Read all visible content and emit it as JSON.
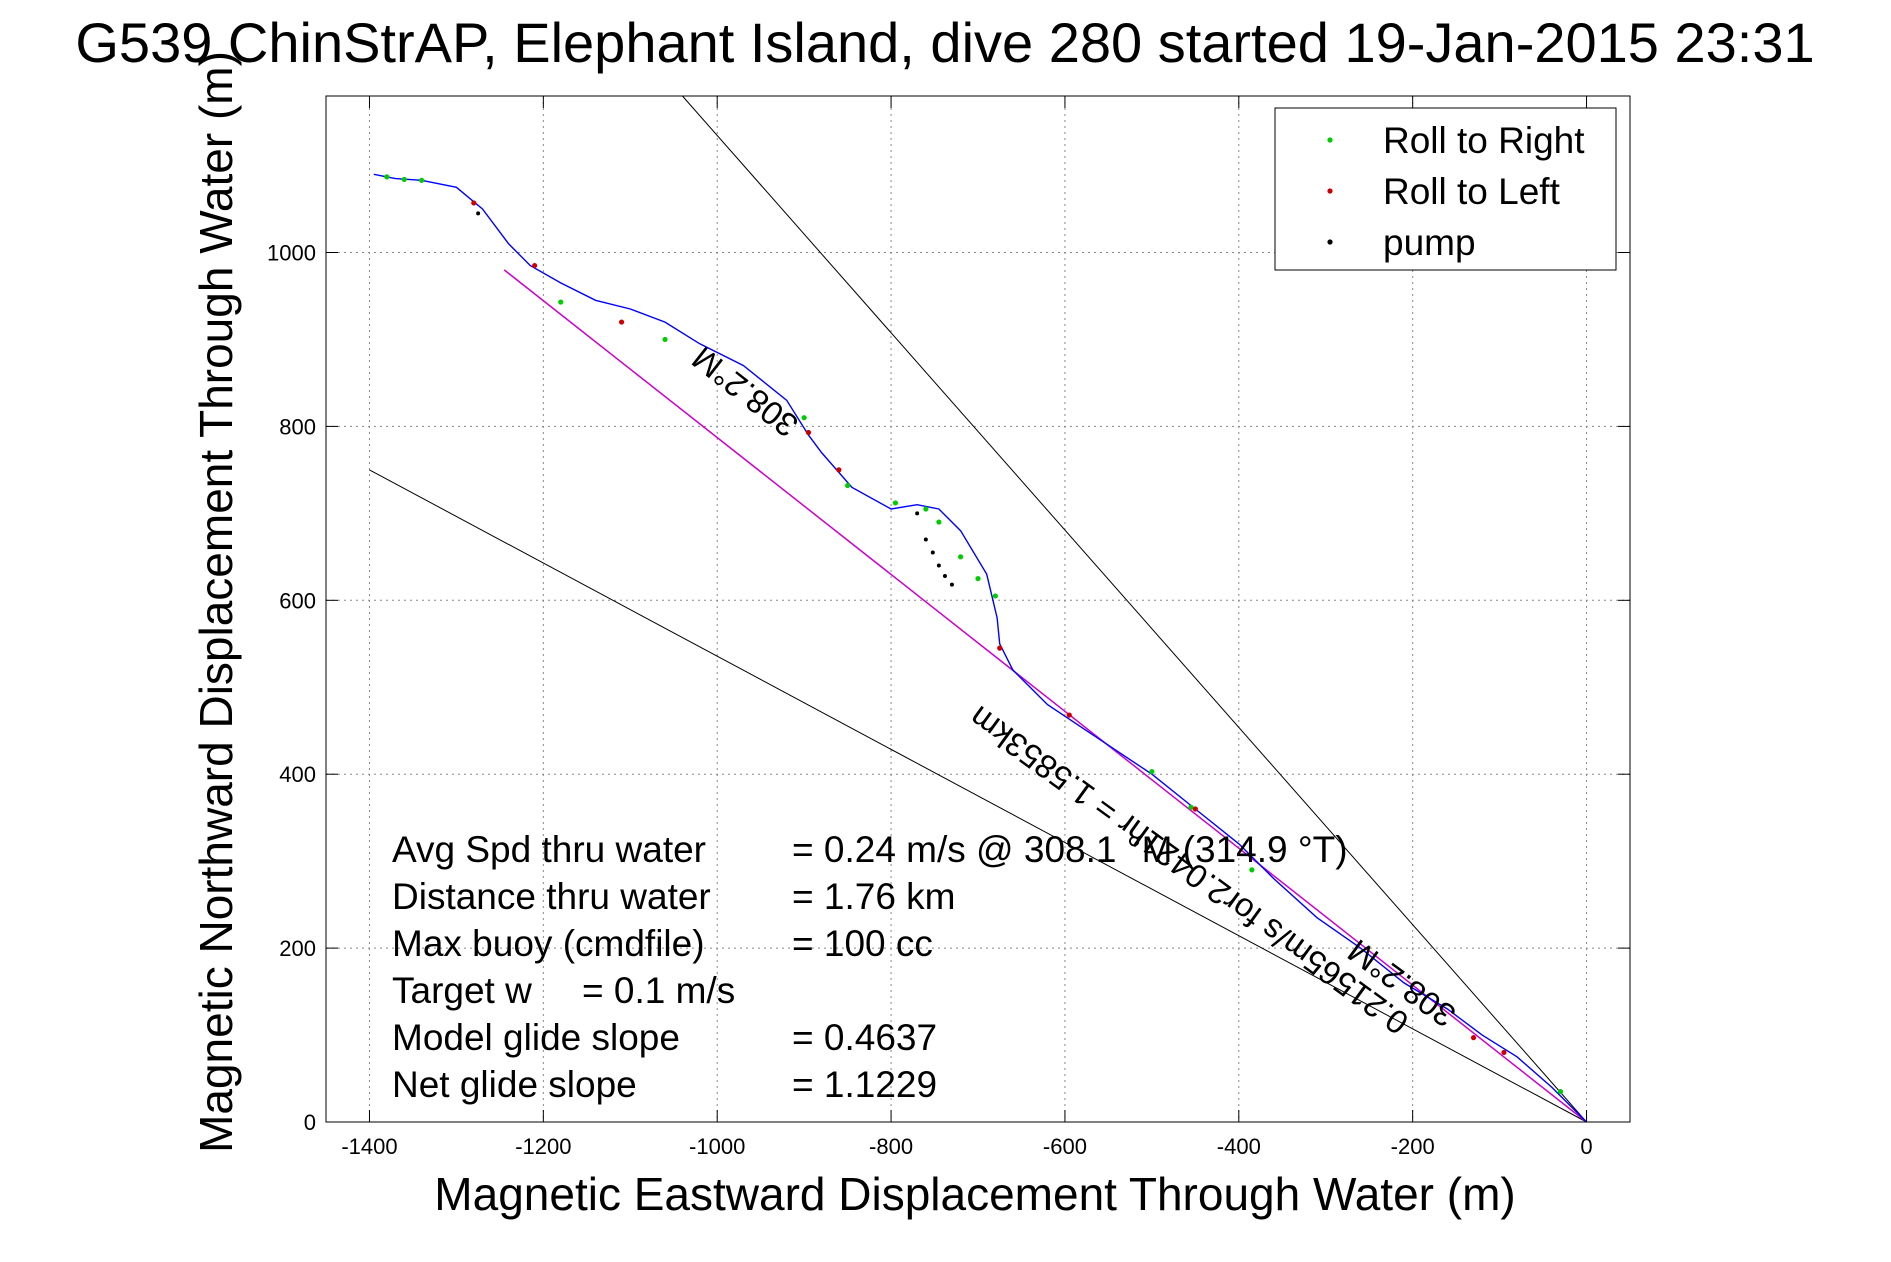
{
  "chart_data": {
    "type": "scatter",
    "title": "G539 ChinStrAP, Elephant Island, dive 280 started 19-Jan-2015 23:31",
    "xlabel": "Magnetic Eastward Displacement Through Water (m)",
    "ylabel": "Magnetic Northward Displacement Through Water (m)",
    "xlim": [
      -1450,
      50
    ],
    "ylim": [
      0,
      1180
    ],
    "xticks": [
      -1400,
      -1200,
      -1000,
      -800,
      -600,
      -400,
      -200,
      0
    ],
    "yticks": [
      0,
      200,
      400,
      600,
      800,
      1000
    ],
    "grid": true,
    "legend_position": "top-right",
    "legend": [
      {
        "label": "Roll to Right",
        "color": "#00cc00"
      },
      {
        "label": "Roll to Left",
        "color": "#cc0000"
      },
      {
        "label": "pump",
        "color": "#000000"
      }
    ],
    "track": {
      "color": "#0000ff",
      "x": [
        0,
        -40,
        -80,
        -120,
        -160,
        -210,
        -260,
        -310,
        -360,
        -400,
        -450,
        -500,
        -560,
        -620,
        -660,
        -675,
        -678,
        -690,
        -720,
        -745,
        -770,
        -800,
        -845,
        -880,
        -895,
        -920,
        -970,
        -1020,
        -1060,
        -1100,
        -1140,
        -1180,
        -1215,
        -1240,
        -1270,
        -1300,
        -1340,
        -1370,
        -1395
      ],
      "y": [
        0,
        40,
        75,
        100,
        130,
        160,
        200,
        235,
        280,
        320,
        360,
        400,
        440,
        480,
        520,
        550,
        580,
        630,
        680,
        705,
        710,
        705,
        730,
        770,
        790,
        830,
        870,
        895,
        920,
        935,
        945,
        965,
        985,
        1010,
        1050,
        1075,
        1083,
        1085,
        1090
      ]
    },
    "glide_line": {
      "color": "#cc00cc",
      "x": [
        0,
        -1245
      ],
      "y": [
        0,
        980
      ]
    },
    "cone_lines": [
      {
        "x": [
          0,
          -1040
        ],
        "y": [
          0,
          1180
        ]
      },
      {
        "x": [
          0,
          -1400
        ],
        "y": [
          0,
          750
        ]
      }
    ],
    "roll_right": {
      "x": [
        -1380,
        -1360,
        -1340,
        -1180,
        -1060,
        -900,
        -850,
        -795,
        -760,
        -745,
        -720,
        -700,
        -680,
        -500,
        -455,
        -385,
        -30
      ],
      "y": [
        1087,
        1084,
        1083,
        943,
        900,
        810,
        732,
        712,
        705,
        690,
        650,
        625,
        605,
        403,
        362,
        290,
        35
      ]
    },
    "roll_left": {
      "x": [
        -1280,
        -1210,
        -1110,
        -895,
        -860,
        -675,
        -595,
        -450,
        -130,
        -95
      ],
      "y": [
        1057,
        985,
        920,
        793,
        750,
        545,
        468,
        360,
        97,
        80
      ]
    },
    "pump": {
      "x": [
        -1275,
        -770,
        -760,
        -752,
        -745,
        -738,
        -730
      ],
      "y": [
        1045,
        700,
        670,
        655,
        640,
        628,
        618
      ]
    },
    "stats": [
      {
        "label": "Avg Spd thru water",
        "value": "=  0.24 m/s @ 308.1 °M (314.9 °T)"
      },
      {
        "label": "Distance thru water",
        "value": "=  1.76 km"
      },
      {
        "label": "Max buoy (cmdfile)",
        "value": "= 100 cc"
      },
      {
        "label": "Target w",
        "value": "= 0.1 m/s"
      },
      {
        "label": "Model glide slope",
        "value": "= 0.4637"
      },
      {
        "label": "Net glide slope",
        "value": "= 1.1229"
      }
    ],
    "annotations": [
      {
        "text": "308.2°M",
        "x": -960,
        "y": 850,
        "angle": 218
      },
      {
        "text": "0.21565m/s for2.0421hr = 1.5853km",
        "x": -450,
        "y": 300,
        "angle": 216
      },
      {
        "text": "308.2°M",
        "x": -205,
        "y": 170,
        "angle": 216
      }
    ]
  }
}
